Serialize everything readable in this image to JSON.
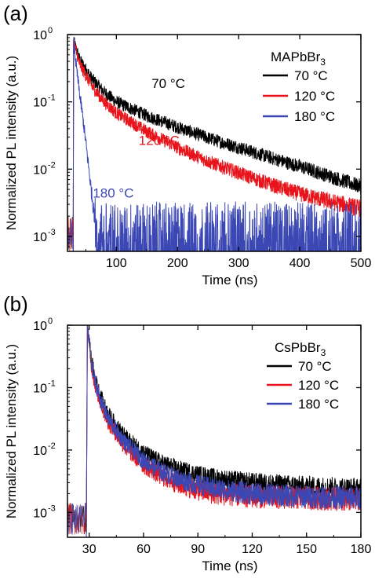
{
  "chart_data": [
    {
      "panel_label": "(a)",
      "type": "line",
      "xlabel": "Time (ns)",
      "ylabel": "Normalized PL intensity (a.u.)",
      "xlim": [
        20,
        500
      ],
      "ylim": [
        0.0006,
        1
      ],
      "yscale": "log",
      "x_ticks": [
        100,
        200,
        300,
        400,
        500
      ],
      "x_tick_labels": [
        "100",
        "200",
        "300",
        "400",
        "500"
      ],
      "y_ticks": [
        0.001,
        0.01,
        0.1,
        1
      ],
      "y_tick_labels": [
        "10",
        "10",
        "10",
        "10"
      ],
      "y_tick_exponents": [
        "-3",
        "-2",
        "-1",
        "0"
      ],
      "legend_title": "MAPbBr3",
      "legend_title_main": "MAPbBr",
      "legend_title_sub": "3",
      "legend_position": "top-right",
      "series": [
        {
          "name": "70 °C",
          "legend_label": "70 °C",
          "color": "#000000",
          "points": [
            [
              30,
              0.8
            ],
            [
              40,
              0.42
            ],
            [
              60,
              0.22
            ],
            [
              80,
              0.14
            ],
            [
              100,
              0.1
            ],
            [
              150,
              0.062
            ],
            [
              200,
              0.042
            ],
            [
              250,
              0.029
            ],
            [
              300,
              0.021
            ],
            [
              350,
              0.015
            ],
            [
              400,
              0.011
            ],
            [
              450,
              0.0078
            ],
            [
              500,
              0.0055
            ]
          ],
          "noise_floor": 0.0011
        },
        {
          "name": "120 °C",
          "legend_label": "120 °C",
          "color": "#e8141b",
          "points": [
            [
              30,
              0.8
            ],
            [
              40,
              0.36
            ],
            [
              60,
              0.17
            ],
            [
              80,
              0.1
            ],
            [
              100,
              0.068
            ],
            [
              150,
              0.036
            ],
            [
              200,
              0.021
            ],
            [
              250,
              0.013
            ],
            [
              300,
              0.0088
            ],
            [
              350,
              0.006
            ],
            [
              400,
              0.0043
            ],
            [
              450,
              0.0033
            ],
            [
              500,
              0.0026
            ]
          ],
          "noise_floor": 0.0011
        },
        {
          "name": "180 °C",
          "legend_label": "180 °C",
          "color": "#3b47b3",
          "points": [
            [
              30,
              0.8
            ],
            [
              35,
              0.3
            ],
            [
              40,
              0.13
            ],
            [
              45,
              0.06
            ],
            [
              50,
              0.025
            ],
            [
              55,
              0.01
            ],
            [
              60,
              0.004
            ],
            [
              65,
              0.0018
            ],
            [
              70,
              0.0011
            ],
            [
              500,
              0.0011
            ]
          ],
          "noise_floor": 0.0011
        }
      ],
      "annotations": [
        {
          "text": "70 °C",
          "color": "#000000",
          "x": 185,
          "y": 0.16
        },
        {
          "text": "120 °C",
          "color": "#e8141b",
          "x": 170,
          "y": 0.023
        },
        {
          "text": "180 °C",
          "color": "#3b47b3",
          "x": 95,
          "y": 0.0038
        }
      ]
    },
    {
      "panel_label": "(b)",
      "type": "line",
      "xlabel": "Time (ns)",
      "ylabel": "Normalized PL intensity (a.u.)",
      "xlim": [
        18,
        180
      ],
      "ylim": [
        0.0004,
        1
      ],
      "yscale": "log",
      "x_ticks": [
        30,
        60,
        90,
        120,
        150,
        180
      ],
      "x_tick_labels": [
        "30",
        "60",
        "90",
        "120",
        "150",
        "180"
      ],
      "y_ticks": [
        0.001,
        0.01,
        0.1,
        1
      ],
      "y_tick_labels": [
        "10",
        "10",
        "10",
        "10"
      ],
      "y_tick_exponents": [
        "-3",
        "-2",
        "-1",
        "0"
      ],
      "legend_title": "CsPbBr3",
      "legend_title_main": "CsPbBr",
      "legend_title_sub": "3",
      "legend_position": "top-right",
      "series": [
        {
          "name": "70 °C",
          "legend_label": "70 °C",
          "color": "#000000",
          "points": [
            [
              29,
              1
            ],
            [
              31,
              0.3
            ],
            [
              33,
              0.15
            ],
            [
              36,
              0.075
            ],
            [
              40,
              0.04
            ],
            [
              45,
              0.024
            ],
            [
              50,
              0.016
            ],
            [
              60,
              0.009
            ],
            [
              70,
              0.0062
            ],
            [
              80,
              0.0048
            ],
            [
              90,
              0.004
            ],
            [
              100,
              0.0035
            ],
            [
              120,
              0.003
            ],
            [
              150,
              0.0026
            ],
            [
              180,
              0.0024
            ]
          ],
          "noise_floor": 0.0008
        },
        {
          "name": "120 °C",
          "legend_label": "120 °C",
          "color": "#e8141b",
          "points": [
            [
              29,
              1
            ],
            [
              31,
              0.25
            ],
            [
              33,
              0.12
            ],
            [
              36,
              0.06
            ],
            [
              40,
              0.03
            ],
            [
              45,
              0.018
            ],
            [
              50,
              0.011
            ],
            [
              60,
              0.0058
            ],
            [
              70,
              0.0038
            ],
            [
              80,
              0.0028
            ],
            [
              90,
              0.0023
            ],
            [
              100,
              0.002
            ],
            [
              120,
              0.0018
            ],
            [
              150,
              0.0017
            ],
            [
              180,
              0.0016
            ]
          ],
          "noise_floor": 0.0008
        },
        {
          "name": "180 °C",
          "legend_label": "180 °C",
          "color": "#3b47b3",
          "points": [
            [
              29,
              1
            ],
            [
              31,
              0.27
            ],
            [
              33,
              0.13
            ],
            [
              36,
              0.066
            ],
            [
              40,
              0.034
            ],
            [
              45,
              0.02
            ],
            [
              50,
              0.013
            ],
            [
              60,
              0.0068
            ],
            [
              70,
              0.0045
            ],
            [
              80,
              0.0034
            ],
            [
              90,
              0.0028
            ],
            [
              100,
              0.0024
            ],
            [
              120,
              0.002
            ],
            [
              150,
              0.0018
            ],
            [
              180,
              0.0017
            ]
          ],
          "noise_floor": 0.0008
        }
      ],
      "annotations": []
    }
  ]
}
